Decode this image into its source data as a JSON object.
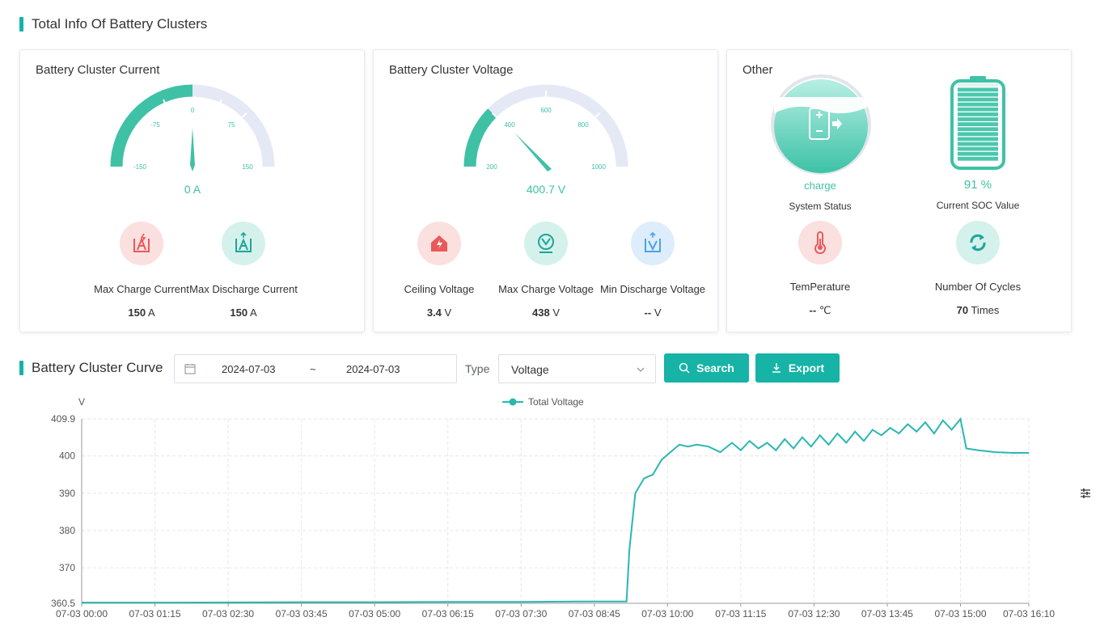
{
  "header": {
    "title": "Total Info Of Battery Clusters"
  },
  "current_card": {
    "title": "Battery Cluster Current",
    "gauge": {
      "min": -150,
      "max": 150,
      "value": 0,
      "ticks": [
        "-150",
        "-75",
        "0",
        "75",
        "150"
      ],
      "display": "0 A"
    },
    "stats": [
      {
        "label": "Max Charge Current",
        "value": "150",
        "unit": "A",
        "icon": "charge-current-icon"
      },
      {
        "label": "Max Discharge Current",
        "value": "150",
        "unit": "A",
        "icon": "discharge-current-icon"
      }
    ]
  },
  "voltage_card": {
    "title": "Battery Cluster Voltage",
    "gauge": {
      "min": 200,
      "max": 1000,
      "value": 400.7,
      "ticks": [
        "200",
        "400",
        "600",
        "800",
        "1000"
      ],
      "display": "400.7 V"
    },
    "stats": [
      {
        "label": "Ceiling Voltage",
        "value": "3.4",
        "unit": "V",
        "icon": "ceiling-voltage-icon"
      },
      {
        "label": "Max Charge Voltage",
        "value": "438",
        "unit": "V",
        "icon": "max-charge-voltage-icon"
      },
      {
        "label": "Min Discharge Voltage",
        "value": "--",
        "unit": "V",
        "icon": "min-discharge-voltage-icon"
      }
    ]
  },
  "other_card": {
    "title": "Other",
    "status": {
      "value": "charge",
      "label": "System Status",
      "icon": "battery-charge-icon"
    },
    "soc": {
      "value": "91 %",
      "label": "Current SOC Value",
      "level": 0.91,
      "icon": "battery-level-icon"
    },
    "temperature": {
      "label": "TemPerature",
      "value": "--",
      "unit": "℃",
      "icon": "thermometer-icon"
    },
    "cycles": {
      "label": "Number Of Cycles",
      "value": "70",
      "unit": "Times",
      "icon": "cycle-icon"
    }
  },
  "curve": {
    "title": "Battery Cluster Curve",
    "date_start": "2024-07-03",
    "date_sep": "~",
    "date_end": "2024-07-03",
    "type_label": "Type",
    "type_value": "Voltage",
    "search_label": "Search",
    "export_label": "Export"
  },
  "colors": {
    "accent": "#16b3a6",
    "gauge": "#3fc1a6",
    "track": "#e4e9f5"
  },
  "chart_data": {
    "type": "line",
    "ylabel": "V",
    "legend": [
      "Total Voltage"
    ],
    "legend_position": "top-center",
    "grid": true,
    "ylim": [
      360.5,
      409.9
    ],
    "yticks": [
      "360.5",
      "370",
      "380",
      "390",
      "400",
      "409.9"
    ],
    "xticks": [
      "07-03 00:00",
      "07-03 01:15",
      "07-03 02:30",
      "07-03 03:45",
      "07-03 05:00",
      "07-03 06:15",
      "07-03 07:30",
      "07-03 08:45",
      "07-03 10:00",
      "07-03 11:15",
      "07-03 12:30",
      "07-03 13:45",
      "07-03 15:00",
      "07-03 16:10"
    ],
    "series": [
      {
        "name": "Total Voltage",
        "color": "#2bb7b0",
        "x_hours": [
          0,
          1.5,
          3.75,
          5,
          6.5,
          7.5,
          8.5,
          9.3,
          9.35,
          9.45,
          9.6,
          9.75,
          9.9,
          10.05,
          10.2,
          10.35,
          10.5,
          10.7,
          10.9,
          11.1,
          11.25,
          11.4,
          11.55,
          11.7,
          11.85,
          12.0,
          12.15,
          12.3,
          12.45,
          12.6,
          12.75,
          12.9,
          13.05,
          13.2,
          13.35,
          13.5,
          13.65,
          13.8,
          13.95,
          14.1,
          14.25,
          14.4,
          14.55,
          14.7,
          14.85,
          15.0,
          15.1,
          15.3,
          15.6,
          15.9,
          16.17
        ],
        "values": [
          360.7,
          360.7,
          360.8,
          360.8,
          360.9,
          360.9,
          361.0,
          361.0,
          375.0,
          390.0,
          394.0,
          395.0,
          399.0,
          401.0,
          403.0,
          402.5,
          403.0,
          402.5,
          401.0,
          403.5,
          401.5,
          404.0,
          402.0,
          403.5,
          401.5,
          404.5,
          402.0,
          405.0,
          402.5,
          405.5,
          403.0,
          406.0,
          403.5,
          406.5,
          404.0,
          407.0,
          405.5,
          407.5,
          406.0,
          408.5,
          406.5,
          409.0,
          406.0,
          409.5,
          407.0,
          409.9,
          402.0,
          401.5,
          401.0,
          400.8,
          400.8
        ]
      }
    ]
  }
}
